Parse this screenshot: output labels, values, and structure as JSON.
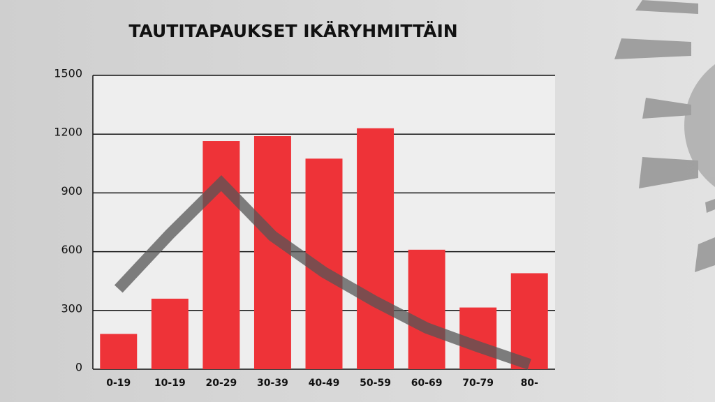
{
  "chart_data": {
    "type": "bar",
    "title": "TAUTITAPAUKSET IKÄRYHMITTÄIN",
    "categories": [
      "0-19",
      "10-19",
      "20-29",
      "30-39",
      "40-49",
      "50-59",
      "60-69",
      "70-79",
      "80-"
    ],
    "series": [
      {
        "type": "bar",
        "color": "#ee3338",
        "values": [
          180,
          360,
          1165,
          1190,
          1075,
          1230,
          610,
          315,
          490
        ]
      },
      {
        "type": "line",
        "color": "#555555",
        "values": [
          410,
          690,
          950,
          680,
          495,
          345,
          210,
          115,
          25
        ]
      }
    ],
    "ylim": [
      0,
      1500
    ],
    "yticks": [
      0,
      300,
      600,
      900,
      1200,
      1500
    ],
    "grid": true
  }
}
